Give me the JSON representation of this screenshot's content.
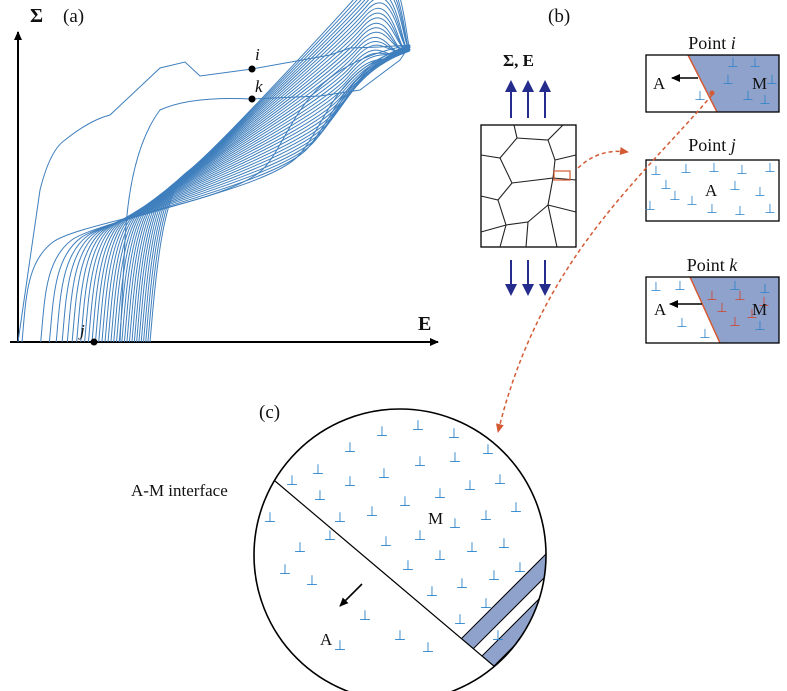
{
  "panel_a": {
    "label": "(a)",
    "y_axis_label": "Σ",
    "x_axis_label": "E",
    "points": {
      "i": "i",
      "j": "j",
      "k": "k"
    }
  },
  "panel_b": {
    "label": "(b)",
    "load_label": "Σ, E",
    "boxes": {
      "point_i": {
        "title": "Point",
        "title_var": "i",
        "phase_left": "A",
        "phase_right": "M"
      },
      "point_j": {
        "title": "Point",
        "title_var": "j",
        "phase": "A"
      },
      "point_k": {
        "title": "Point",
        "title_var": "k",
        "phase_left": "A",
        "phase_right": "M"
      }
    }
  },
  "panel_c": {
    "label": "(c)",
    "interface_label": "A-M interface",
    "phase_m": "M",
    "phase_a": "A"
  },
  "dislocation_symbol": "⊥",
  "colors": {
    "curve": "#3f7fbd",
    "martensite_fill": "#8fa2cc",
    "dislocation_blue": "#2a82c9",
    "dislocation_red": "#d0442a",
    "arrow_blue": "#262c8e",
    "dashed_red": "#d45a34"
  }
}
